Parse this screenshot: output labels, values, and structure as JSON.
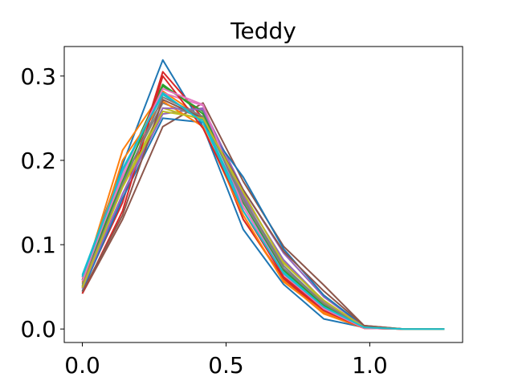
{
  "chart_data": {
    "type": "line",
    "title": "Teddy",
    "xlabel": "",
    "ylabel": "",
    "xlim": [
      -0.063,
      1.323
    ],
    "ylim": [
      -0.016,
      0.335
    ],
    "xticks": [
      0.0,
      0.5,
      1.0
    ],
    "xtick_labels": [
      "0.0",
      "0.5",
      "1.0"
    ],
    "yticks": [
      0.0,
      0.1,
      0.2,
      0.3
    ],
    "ytick_labels": [
      "0.0",
      "0.1",
      "0.2",
      "0.3"
    ],
    "grid": false,
    "legend": "none",
    "x": [
      0.0,
      0.14,
      0.28,
      0.42,
      0.56,
      0.7,
      0.84,
      0.98,
      1.12,
      1.26
    ],
    "series": [
      {
        "color": "#1f77b4",
        "values": [
          0.062,
          0.195,
          0.319,
          0.24,
          0.118,
          0.053,
          0.012,
          0.002,
          0.0,
          0.0
        ]
      },
      {
        "color": "#ff7f0e",
        "values": [
          0.055,
          0.212,
          0.282,
          0.25,
          0.13,
          0.058,
          0.018,
          0.001,
          0.0,
          0.0
        ]
      },
      {
        "color": "#2ca02c",
        "values": [
          0.058,
          0.185,
          0.29,
          0.255,
          0.15,
          0.07,
          0.025,
          0.002,
          0.0,
          0.0
        ]
      },
      {
        "color": "#d62728",
        "values": [
          0.048,
          0.15,
          0.305,
          0.25,
          0.13,
          0.06,
          0.02,
          0.001,
          0.0,
          0.0
        ]
      },
      {
        "color": "#9467bd",
        "values": [
          0.05,
          0.16,
          0.255,
          0.262,
          0.165,
          0.09,
          0.038,
          0.003,
          0.0,
          0.0
        ]
      },
      {
        "color": "#8c564b",
        "values": [
          0.042,
          0.13,
          0.24,
          0.268,
          0.175,
          0.098,
          0.052,
          0.004,
          0.0,
          0.0
        ]
      },
      {
        "color": "#e377c2",
        "values": [
          0.06,
          0.18,
          0.28,
          0.265,
          0.14,
          0.065,
          0.022,
          0.001,
          0.0,
          0.0
        ]
      },
      {
        "color": "#7f7f7f",
        "values": [
          0.053,
          0.175,
          0.268,
          0.25,
          0.155,
          0.075,
          0.03,
          0.002,
          0.0,
          0.0
        ]
      },
      {
        "color": "#bcbd22",
        "values": [
          0.05,
          0.17,
          0.262,
          0.248,
          0.16,
          0.08,
          0.032,
          0.002,
          0.0,
          0.0
        ]
      },
      {
        "color": "#17becf",
        "values": [
          0.064,
          0.19,
          0.278,
          0.248,
          0.145,
          0.068,
          0.028,
          0.002,
          0.0,
          0.0
        ]
      },
      {
        "color": "#1f77b4",
        "values": [
          0.045,
          0.155,
          0.25,
          0.245,
          0.18,
          0.095,
          0.04,
          0.003,
          0.0,
          0.0
        ]
      },
      {
        "color": "#ff7f0e",
        "values": [
          0.05,
          0.2,
          0.27,
          0.24,
          0.135,
          0.056,
          0.02,
          0.001,
          0.0,
          0.0
        ]
      },
      {
        "color": "#2ca02c",
        "values": [
          0.058,
          0.175,
          0.288,
          0.258,
          0.15,
          0.07,
          0.028,
          0.002,
          0.0,
          0.0
        ]
      },
      {
        "color": "#d62728",
        "values": [
          0.042,
          0.14,
          0.3,
          0.238,
          0.14,
          0.062,
          0.022,
          0.001,
          0.0,
          0.0
        ]
      },
      {
        "color": "#9467bd",
        "values": [
          0.048,
          0.16,
          0.262,
          0.26,
          0.158,
          0.082,
          0.033,
          0.003,
          0.0,
          0.0
        ]
      },
      {
        "color": "#8c564b",
        "values": [
          0.044,
          0.135,
          0.272,
          0.25,
          0.165,
          0.092,
          0.045,
          0.004,
          0.0,
          0.0
        ]
      },
      {
        "color": "#e377c2",
        "values": [
          0.057,
          0.185,
          0.285,
          0.266,
          0.145,
          0.066,
          0.024,
          0.001,
          0.0,
          0.0
        ]
      },
      {
        "color": "#7f7f7f",
        "values": [
          0.051,
          0.172,
          0.275,
          0.252,
          0.152,
          0.072,
          0.03,
          0.002,
          0.0,
          0.0
        ]
      },
      {
        "color": "#bcbd22",
        "values": [
          0.049,
          0.168,
          0.258,
          0.25,
          0.162,
          0.078,
          0.034,
          0.002,
          0.0,
          0.0
        ]
      },
      {
        "color": "#17becf",
        "values": [
          0.062,
          0.188,
          0.28,
          0.245,
          0.14,
          0.066,
          0.026,
          0.002,
          0.0,
          0.0
        ]
      }
    ]
  }
}
